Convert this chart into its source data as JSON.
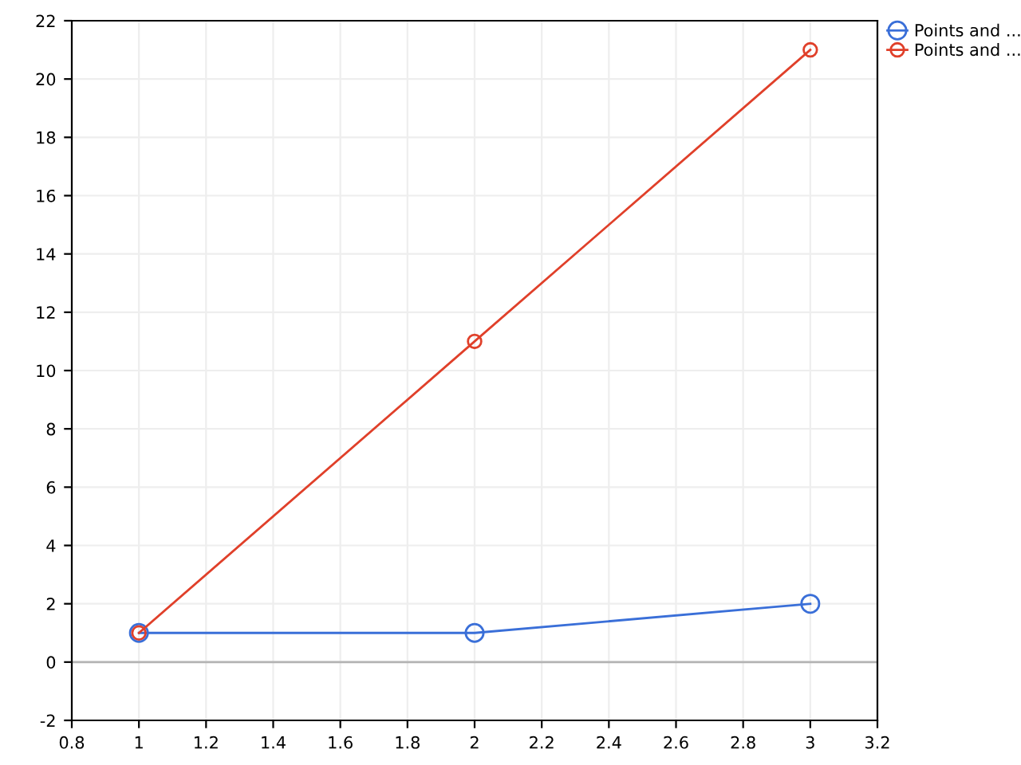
{
  "chart_data": {
    "type": "line",
    "x": [
      1,
      2,
      3
    ],
    "series": [
      {
        "name": "Points and ...",
        "color": "#3a6fd8",
        "values": [
          1,
          1,
          2
        ]
      },
      {
        "name": "Points and ...",
        "color": "#e0402a",
        "values": [
          1,
          11,
          21
        ]
      }
    ],
    "xlim": [
      0.8,
      3.2
    ],
    "xticks": [
      0.8,
      1,
      1.2,
      1.4,
      1.6,
      1.8,
      2,
      2.2,
      2.4,
      2.6,
      2.8,
      3,
      3.2
    ],
    "ylim": [
      -2,
      22
    ],
    "yticks": [
      -2,
      0,
      2,
      4,
      6,
      8,
      10,
      12,
      14,
      16,
      18,
      20,
      22
    ],
    "ref_lines": [
      {
        "axis": "y",
        "value": 0,
        "color": "#b4b4b4"
      }
    ],
    "grid": true,
    "legend": "top right",
    "marker": "circle",
    "line_style": "solid"
  }
}
